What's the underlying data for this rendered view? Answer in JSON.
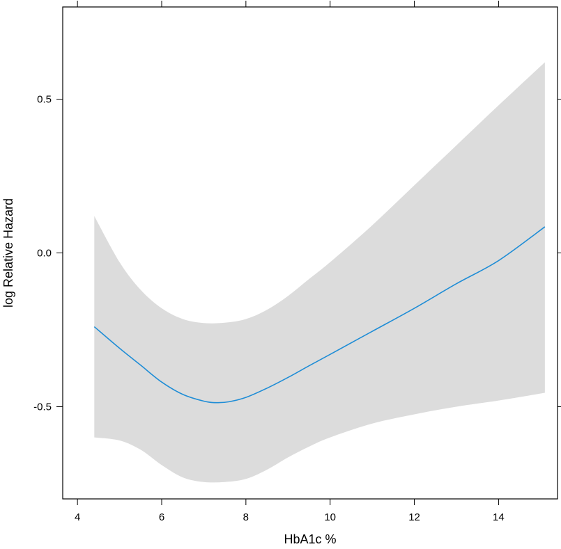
{
  "chart_data": {
    "type": "line",
    "title": "",
    "xlabel": "HbA1c %",
    "ylabel": "log Relative Hazard",
    "xlim": [
      3.65,
      15.4
    ],
    "ylim": [
      -0.8,
      0.8
    ],
    "x_ticks": [
      4,
      6,
      8,
      10,
      12,
      14
    ],
    "x_tick_labels": [
      "4",
      "6",
      "8",
      "10",
      "12",
      "14"
    ],
    "y_ticks": [
      -0.5,
      0.0,
      0.5
    ],
    "y_tick_labels": [
      "-0.5",
      "0.0",
      "0.5"
    ],
    "grid": false,
    "legend": "none",
    "colors": {
      "line": "#1f8dd6",
      "band": "#dcdcdc",
      "axes": "#000000"
    },
    "series": [
      {
        "x": [
          4.4,
          5.0,
          5.5,
          6.0,
          6.5,
          7.0,
          7.3,
          7.6,
          8.0,
          8.5,
          9.0,
          9.5,
          10.0,
          11.0,
          12.0,
          13.0,
          14.0,
          15.1
        ],
        "y": [
          -0.24,
          -0.31,
          -0.365,
          -0.42,
          -0.46,
          -0.482,
          -0.487,
          -0.484,
          -0.47,
          -0.44,
          -0.405,
          -0.367,
          -0.33,
          -0.255,
          -0.18,
          -0.1,
          -0.025,
          0.085
        ]
      }
    ],
    "confidence_band": {
      "x": [
        4.4,
        5.0,
        5.5,
        6.0,
        6.5,
        7.0,
        7.5,
        8.0,
        8.5,
        9.0,
        9.5,
        10.0,
        11.0,
        12.0,
        13.0,
        14.0,
        15.1
      ],
      "upper": [
        0.12,
        -0.03,
        -0.12,
        -0.18,
        -0.215,
        -0.228,
        -0.227,
        -0.215,
        -0.185,
        -0.14,
        -0.085,
        -0.03,
        0.09,
        0.22,
        0.35,
        0.48,
        0.62
      ],
      "lower": [
        -0.6,
        -0.61,
        -0.64,
        -0.69,
        -0.73,
        -0.745,
        -0.745,
        -0.735,
        -0.705,
        -0.665,
        -0.63,
        -0.6,
        -0.555,
        -0.525,
        -0.5,
        -0.48,
        -0.455
      ]
    }
  }
}
